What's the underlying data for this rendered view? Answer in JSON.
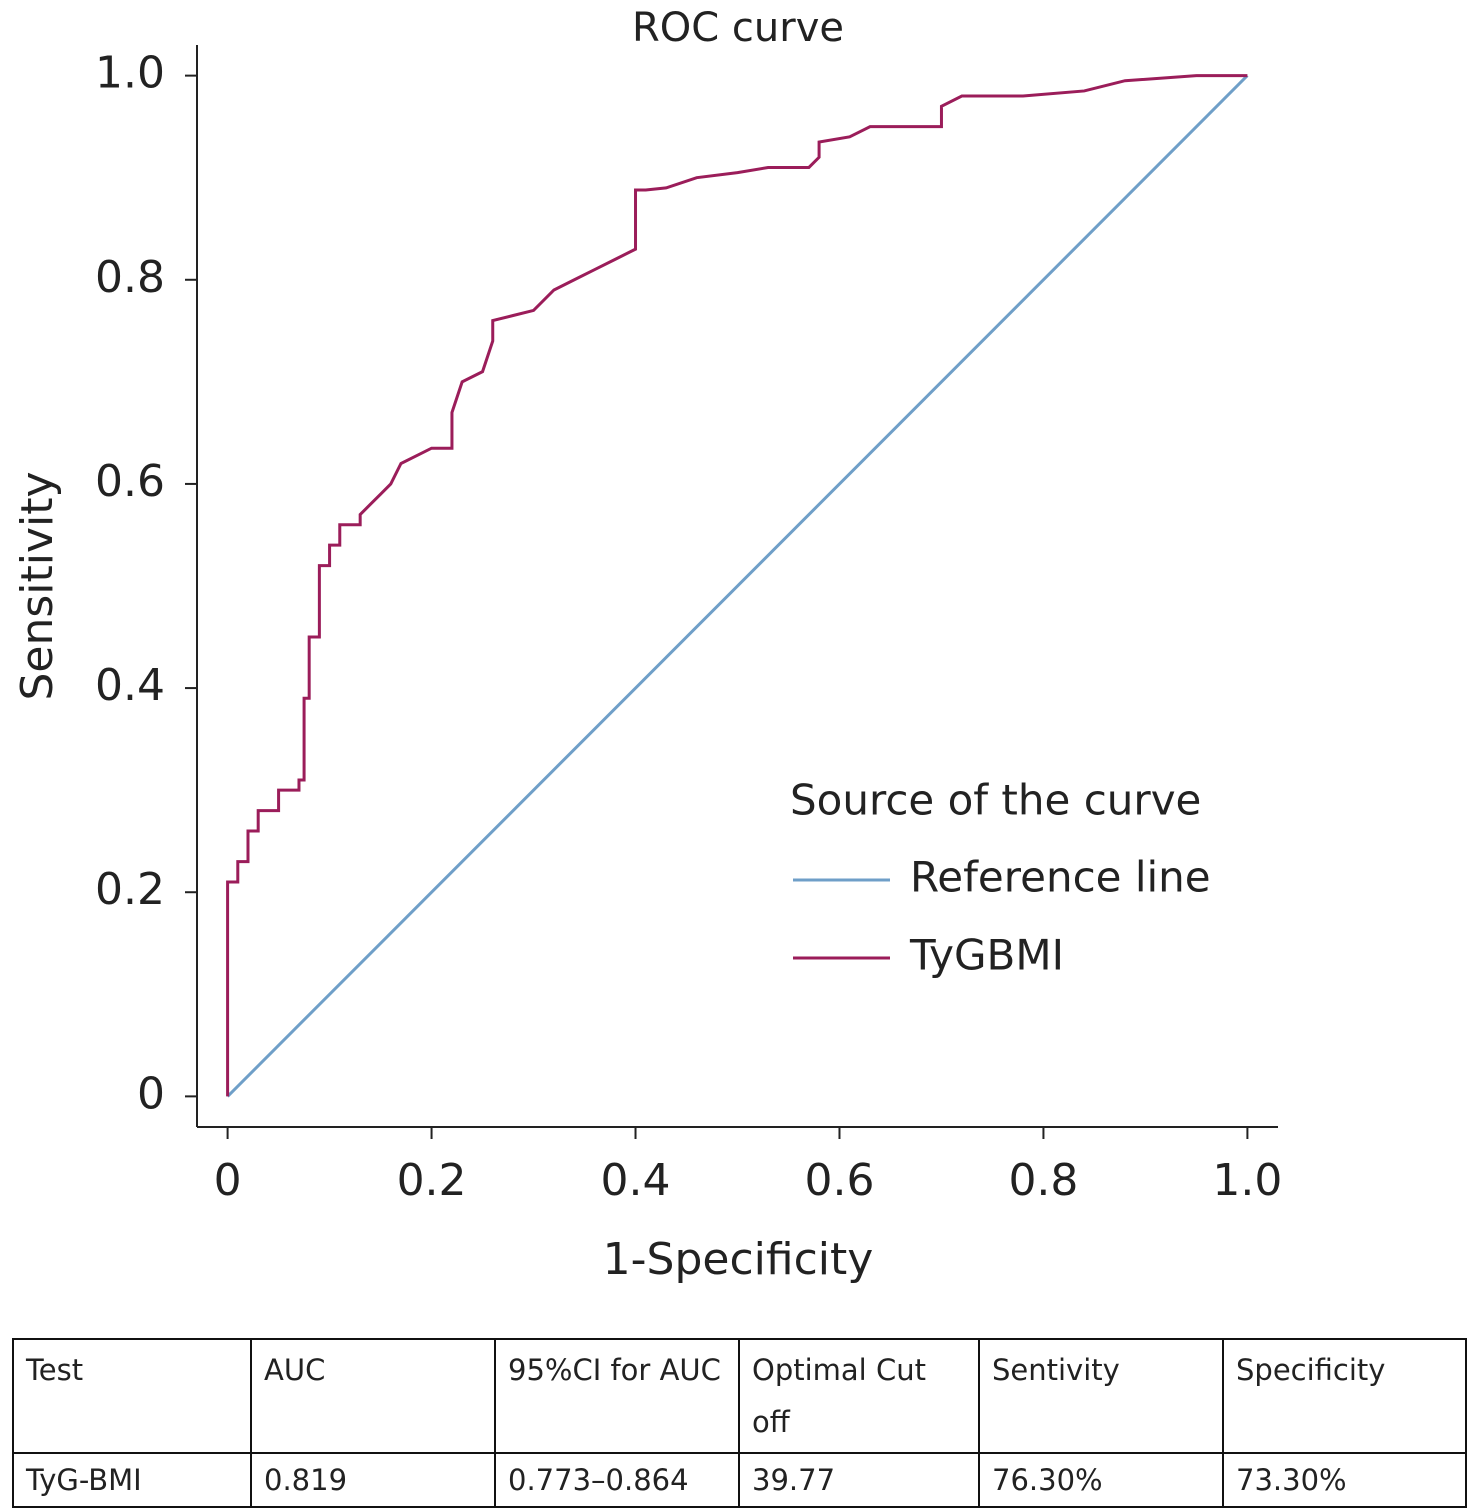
{
  "chart_data": {
    "type": "line",
    "title": "ROC curve",
    "xlabel": "1-Specificity",
    "ylabel": "Sensitivity",
    "xlim": [
      -0.03,
      1.03
    ],
    "ylim": [
      -0.03,
      1.03
    ],
    "xticks": [
      0,
      0.2,
      0.4,
      0.6,
      0.8,
      {
        "value": 1,
        "label": "1.0"
      }
    ],
    "yticks": [
      0,
      0.2,
      0.4,
      0.6,
      0.8,
      {
        "value": 1,
        "label": "1.0"
      }
    ],
    "legend_title": "Source of the curve",
    "legend": "lower right",
    "series": [
      {
        "name": "Reference line",
        "color": "#6f9fc8",
        "x": [
          0,
          1
        ],
        "values": [
          0,
          1
        ]
      },
      {
        "name": "TyGBMI",
        "color": "#9b1d5a",
        "x": [
          0,
          0,
          0.01,
          0.01,
          0.02,
          0.02,
          0.03,
          0.03,
          0.05,
          0.05,
          0.07,
          0.07,
          0.075,
          0.075,
          0.08,
          0.08,
          0.09,
          0.09,
          0.1,
          0.1,
          0.11,
          0.11,
          0.13,
          0.13,
          0.14,
          0.15,
          0.16,
          0.17,
          0.19,
          0.2,
          0.22,
          0.22,
          0.23,
          0.25,
          0.26,
          0.26,
          0.28,
          0.3,
          0.32,
          0.34,
          0.36,
          0.38,
          0.4,
          0.4,
          0.41,
          0.43,
          0.46,
          0.5,
          0.53,
          0.57,
          0.58,
          0.58,
          0.61,
          0.63,
          0.7,
          0.7,
          0.72,
          0.78,
          0.84,
          0.88,
          0.95,
          1
        ],
        "values": [
          0,
          0.21,
          0.21,
          0.23,
          0.23,
          0.26,
          0.26,
          0.28,
          0.28,
          0.3,
          0.3,
          0.31,
          0.31,
          0.39,
          0.39,
          0.45,
          0.45,
          0.52,
          0.52,
          0.54,
          0.54,
          0.56,
          0.56,
          0.57,
          0.58,
          0.59,
          0.6,
          0.62,
          0.63,
          0.635,
          0.635,
          0.67,
          0.7,
          0.71,
          0.74,
          0.76,
          0.765,
          0.77,
          0.79,
          0.8,
          0.81,
          0.82,
          0.83,
          0.888,
          0.888,
          0.89,
          0.9,
          0.905,
          0.91,
          0.91,
          0.92,
          0.935,
          0.94,
          0.95,
          0.95,
          0.97,
          0.98,
          0.98,
          0.985,
          0.995,
          1,
          1
        ]
      }
    ]
  },
  "table": {
    "headers": [
      "Test",
      "AUC",
      "95%CI for AUC",
      "Optimal Cut off",
      "Sentivity",
      "Specificity"
    ],
    "rows": [
      [
        "TyG-BMI",
        "0.819",
        "0.773–0.864",
        "39.77",
        "76.30%",
        "73.30%"
      ]
    ]
  }
}
